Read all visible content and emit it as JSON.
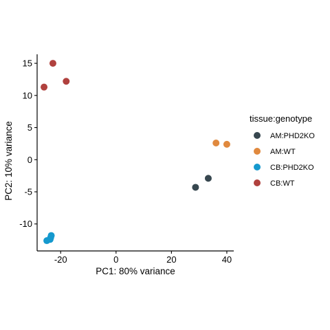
{
  "chart_data": {
    "type": "scatter",
    "xlabel": "PC1: 80% variance",
    "ylabel": "PC2: 10% variance",
    "xlim": [
      -28.5,
      42.5
    ],
    "ylim": [
      -14.2,
      16.4
    ],
    "x_ticks": [
      -20,
      0,
      20,
      40
    ],
    "y_ticks": [
      -10,
      -5,
      0,
      5,
      10,
      15
    ],
    "grid": false,
    "legend": {
      "title": "tissue:genotype",
      "placement": "right"
    },
    "series": [
      {
        "name": "AM:PHD2KO",
        "color": "#37474F",
        "points": [
          {
            "x": 28.7,
            "y": -4.3
          },
          {
            "x": 33.3,
            "y": -2.9
          }
        ]
      },
      {
        "name": "AM:WT",
        "color": "#E0893E",
        "points": [
          {
            "x": 36.1,
            "y": 2.6
          },
          {
            "x": 40.0,
            "y": 2.4
          }
        ]
      },
      {
        "name": "CB:PHD2KO",
        "color": "#1599CE",
        "points": [
          {
            "x": -25.0,
            "y": -12.6
          },
          {
            "x": -23.6,
            "y": -12.1
          },
          {
            "x": -23.4,
            "y": -11.8
          },
          {
            "x": -23.8,
            "y": -12.4
          }
        ]
      },
      {
        "name": "CB:WT",
        "color": "#B0413E",
        "points": [
          {
            "x": -22.8,
            "y": 15.0
          },
          {
            "x": -26.0,
            "y": 11.3
          },
          {
            "x": -18.0,
            "y": 12.2
          }
        ]
      }
    ]
  }
}
